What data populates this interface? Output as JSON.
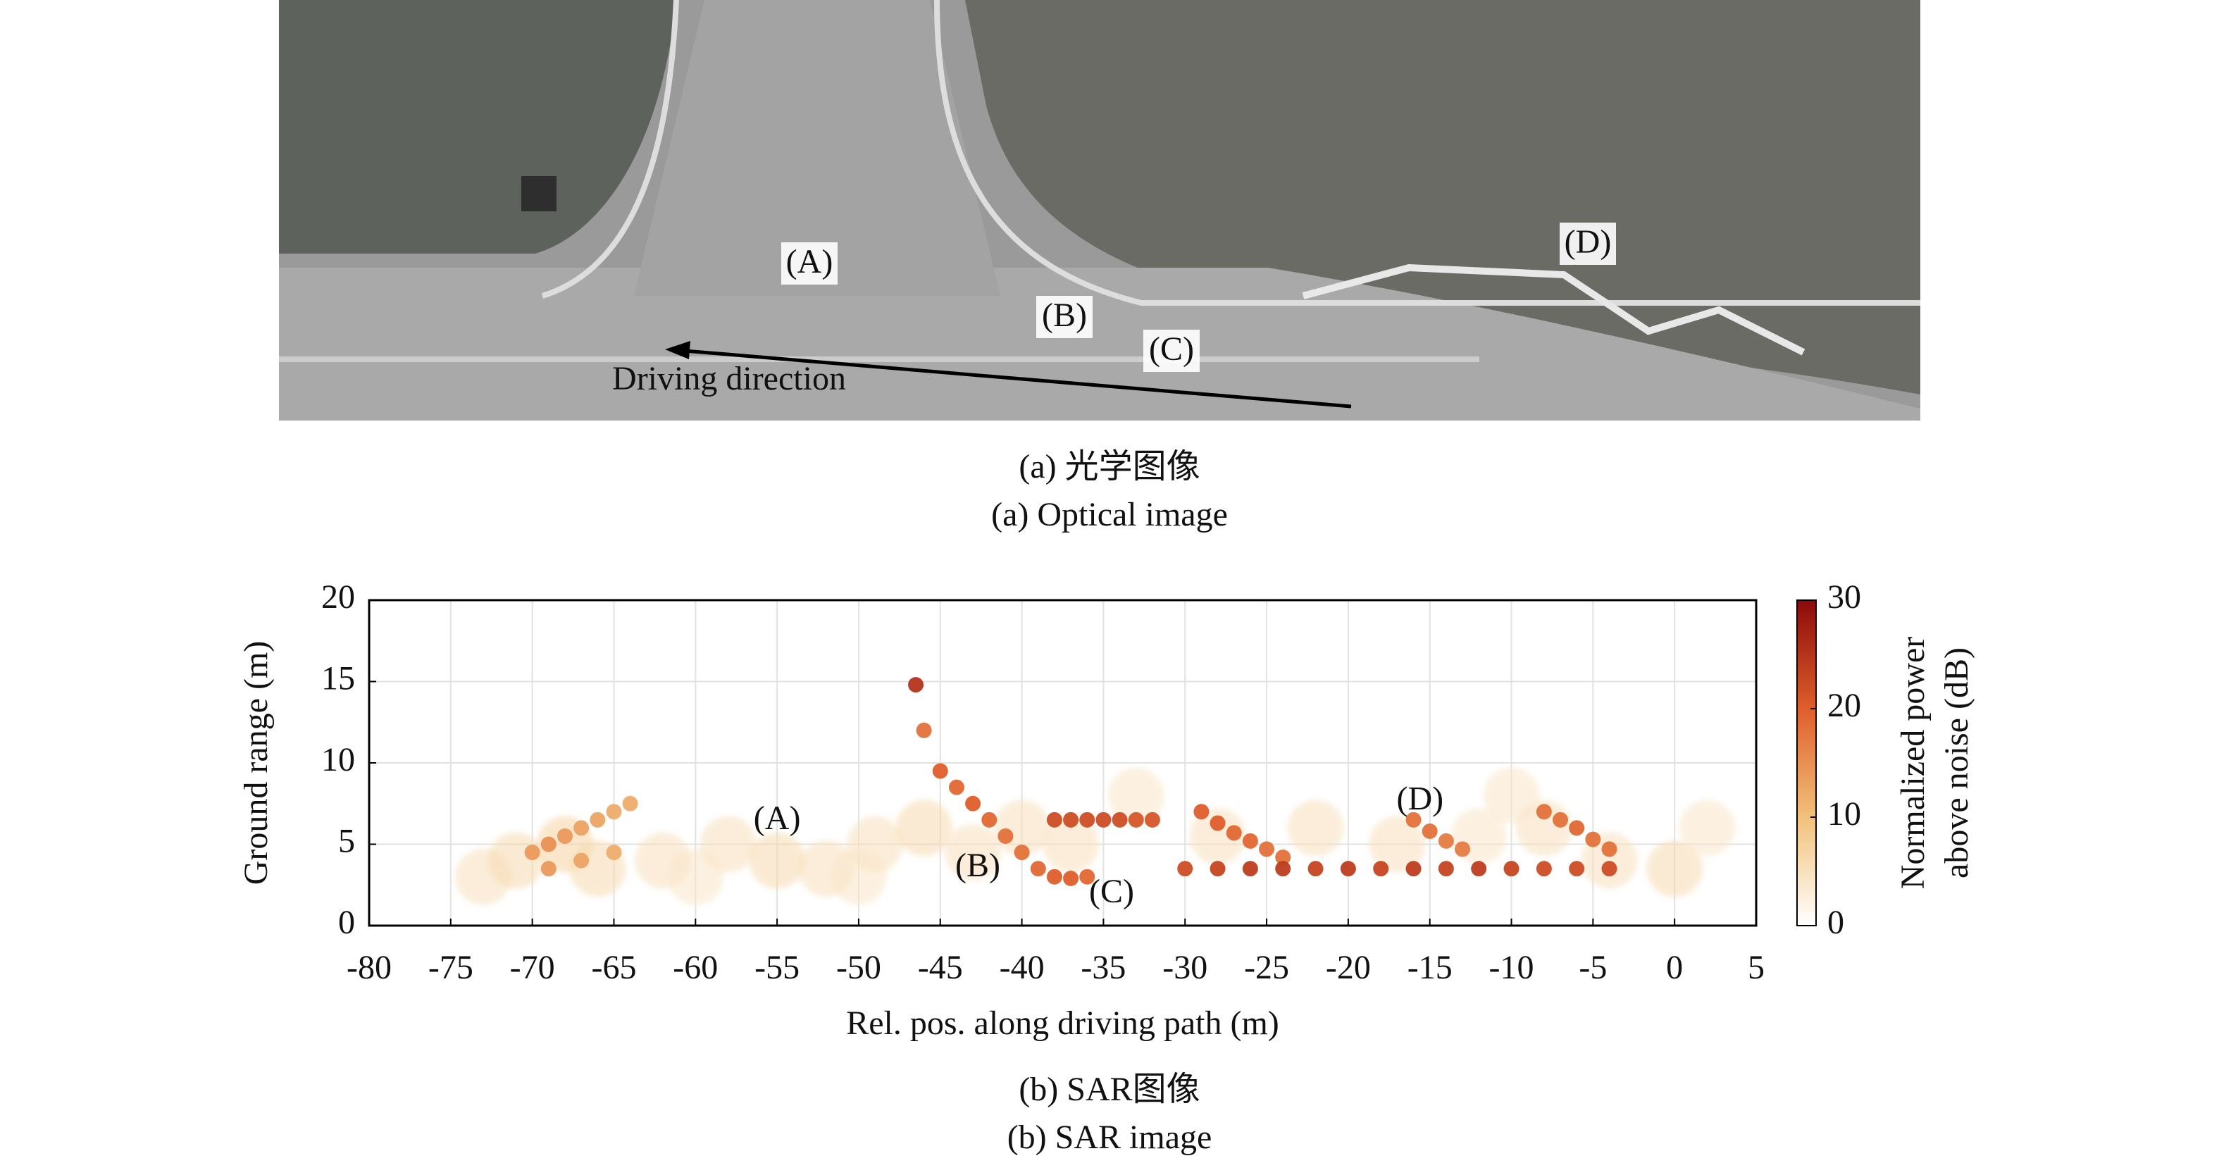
{
  "figure_a": {
    "labels": [
      "(A)",
      "(B)",
      "(C)",
      "(D)"
    ],
    "arrow_label": "Driving direction",
    "caption_cn": "(a) 光学图像",
    "caption_en": "(a) Optical image"
  },
  "chart_data": {
    "type": "heatmap",
    "x_label": "Rel. pos. along driving path (m)",
    "y_label": "Ground range (m)",
    "xlim": [
      -80,
      5
    ],
    "xticks": [
      -80,
      -75,
      -70,
      -65,
      -60,
      -55,
      -50,
      -45,
      -40,
      -35,
      -30,
      -25,
      -20,
      -15,
      -10,
      -5,
      0,
      5
    ],
    "ylim": [
      0,
      20
    ],
    "yticks": [
      0,
      5,
      10,
      15,
      20
    ],
    "grid": true,
    "colorbar": {
      "label": [
        "Normalized power",
        "above noise (dB)"
      ],
      "lim": [
        0,
        30
      ],
      "ticks": [
        0,
        10,
        20,
        30
      ]
    },
    "annotations": [
      {
        "text": "(A)",
        "x": -55,
        "y": 6.4
      },
      {
        "text": "(B)",
        "x": -42.7,
        "y": 3.5
      },
      {
        "text": "(C)",
        "x": -34.5,
        "y": 1.9
      },
      {
        "text": "(D)",
        "x": -15.6,
        "y": 7.6
      }
    ],
    "points": {
      "x": [
        -73,
        -71,
        -68,
        -66,
        -62,
        -58,
        -55,
        -52,
        -49,
        -46,
        -43,
        -40,
        -37,
        -33,
        -28,
        -22,
        -17,
        -12,
        -8,
        -4,
        0,
        2,
        -60,
        -50,
        -10,
        -70,
        -69,
        -68,
        -67,
        -66,
        -65,
        -64,
        -69,
        -67,
        -65,
        -46.5,
        -46,
        -45,
        -44,
        -43,
        -42,
        -41,
        -40,
        -39,
        -38,
        -37,
        -36,
        -38,
        -37,
        -36,
        -35,
        -34,
        -33,
        -32,
        -29,
        -28,
        -27,
        -26,
        -25,
        -24,
        -30,
        -28,
        -26,
        -24,
        -22,
        -20,
        -18,
        -16,
        -14,
        -12,
        -10,
        -8,
        -6,
        -4,
        -16,
        -15,
        -14,
        -13,
        -8,
        -7,
        -6,
        -5,
        -4
      ],
      "y": [
        3,
        4,
        5,
        3.5,
        4,
        5,
        4,
        3.5,
        5,
        6,
        4.5,
        6,
        5,
        8,
        5.5,
        6,
        5,
        5.5,
        6,
        4,
        3.5,
        6,
        3,
        3,
        8,
        4.5,
        5,
        5.5,
        6,
        6.5,
        7,
        7.5,
        3.5,
        4,
        4.5,
        14.8,
        12,
        9.5,
        8.5,
        7.5,
        6.5,
        5.5,
        4.5,
        3.5,
        3,
        2.9,
        3,
        6.5,
        6.5,
        6.5,
        6.5,
        6.5,
        6.5,
        6.5,
        7,
        6.3,
        5.7,
        5.2,
        4.7,
        4.2,
        3.5,
        3.5,
        3.5,
        3.5,
        3.5,
        3.5,
        3.5,
        3.5,
        3.5,
        3.5,
        3.5,
        3.5,
        3.5,
        3.5,
        6.5,
        5.8,
        5.2,
        4.7,
        7,
        6.5,
        6,
        5.3,
        4.7
      ],
      "power": [
        5,
        6,
        7,
        6,
        5,
        5,
        6,
        5,
        5,
        6,
        5,
        5,
        5,
        4,
        5,
        5,
        5,
        4,
        5,
        5,
        6,
        4,
        4,
        4,
        4,
        14,
        15,
        14,
        13,
        13,
        12,
        12,
        14,
        13,
        12,
        25,
        18,
        20,
        19,
        20,
        19,
        18,
        18,
        19,
        20,
        20,
        19,
        22,
        22,
        22,
        22,
        22,
        21,
        21,
        20,
        20,
        19,
        19,
        18,
        18,
        22,
        23,
        24,
        24,
        23,
        24,
        23,
        24,
        23,
        24,
        23,
        22,
        22,
        22,
        18,
        18,
        17,
        17,
        18,
        18,
        19,
        18,
        18
      ]
    }
  },
  "figure_b": {
    "caption_cn": "(b) SAR图像",
    "caption_en": "(b) SAR image"
  }
}
